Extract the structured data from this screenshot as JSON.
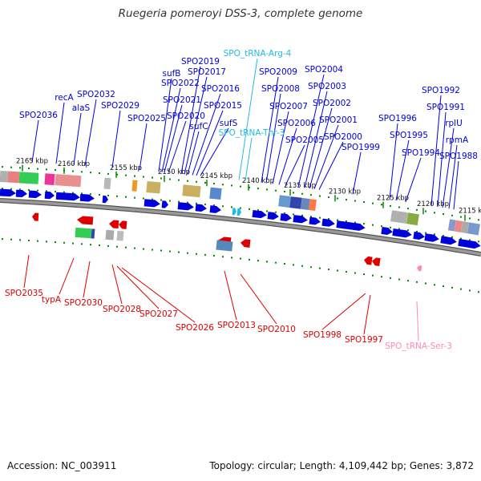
{
  "title": "Ruegeria pomeroyi DSS-3, complete genome",
  "footer": {
    "accession": "Accession: NC_003911",
    "summary": "Topology: circular; Length: 4,109,442 bp; Genes: 3,872"
  },
  "colors": {
    "forward_gene": "#0000dd",
    "reverse_gene": "#dd0000",
    "trna_forward": "#22bbdd",
    "trna_reverse": "#ff88bb",
    "backbone": "#808080",
    "tick": "#008800"
  },
  "position_scale": {
    "unit": "kbp",
    "ticks": [
      "2165 kbp",
      "2160 kbp",
      "2155 kbp",
      "2150 kbp",
      "2145 kbp",
      "2140 kbp",
      "2135 kbp",
      "2130 kbp",
      "2125 kbp",
      "2120 kbp",
      "2115 kbp"
    ]
  },
  "forward_labels": [
    {
      "name": "SPO2036",
      "type": "gene"
    },
    {
      "name": "recA",
      "type": "gene"
    },
    {
      "name": "alaS",
      "type": "gene"
    },
    {
      "name": "SPO2032",
      "type": "gene"
    },
    {
      "name": "SPO2029",
      "type": "gene"
    },
    {
      "name": "SPO2025",
      "type": "gene"
    },
    {
      "name": "sufB",
      "type": "gene"
    },
    {
      "name": "SPO2022",
      "type": "gene"
    },
    {
      "name": "SPO2021",
      "type": "gene"
    },
    {
      "name": "SPO2020",
      "type": "gene"
    },
    {
      "name": "SPO2019",
      "type": "gene"
    },
    {
      "name": "SPO2017",
      "type": "gene"
    },
    {
      "name": "sufC",
      "type": "gene"
    },
    {
      "name": "SPO2016",
      "type": "gene"
    },
    {
      "name": "SPO2015",
      "type": "gene"
    },
    {
      "name": "sufS",
      "type": "gene"
    },
    {
      "name": "SPO_tRNA-Arg-4",
      "type": "trna"
    },
    {
      "name": "SPO_tRNA-Thr-3",
      "type": "trna"
    },
    {
      "name": "SPO2009",
      "type": "gene"
    },
    {
      "name": "SPO2008",
      "type": "gene"
    },
    {
      "name": "SPO2007",
      "type": "gene"
    },
    {
      "name": "SPO2006",
      "type": "gene"
    },
    {
      "name": "SPO2005",
      "type": "gene"
    },
    {
      "name": "SPO2004",
      "type": "gene"
    },
    {
      "name": "SPO2003",
      "type": "gene"
    },
    {
      "name": "SPO2002",
      "type": "gene"
    },
    {
      "name": "SPO2001",
      "type": "gene"
    },
    {
      "name": "SPO2000",
      "type": "gene"
    },
    {
      "name": "SPO1999",
      "type": "gene"
    },
    {
      "name": "SPO1996",
      "type": "gene"
    },
    {
      "name": "SPO1995",
      "type": "gene"
    },
    {
      "name": "SPO1994",
      "type": "gene"
    },
    {
      "name": "SPO1992",
      "type": "gene"
    },
    {
      "name": "SPO1991",
      "type": "gene"
    },
    {
      "name": "rplU",
      "type": "gene"
    },
    {
      "name": "rpmA",
      "type": "gene"
    },
    {
      "name": "SPO1988",
      "type": "gene"
    }
  ],
  "reverse_labels": [
    {
      "name": "SPO2035",
      "type": "gene"
    },
    {
      "name": "typA",
      "type": "gene"
    },
    {
      "name": "SPO2030",
      "type": "gene"
    },
    {
      "name": "SPO2028",
      "type": "gene"
    },
    {
      "name": "SPO2027",
      "type": "gene"
    },
    {
      "name": "SPO2026",
      "type": "gene"
    },
    {
      "name": "SPO2013",
      "type": "gene"
    },
    {
      "name": "SPO2010",
      "type": "gene"
    },
    {
      "name": "SPO1998",
      "type": "gene"
    },
    {
      "name": "SPO1997",
      "type": "gene"
    },
    {
      "name": "SPO_tRNA-Ser-3",
      "type": "trna"
    }
  ]
}
